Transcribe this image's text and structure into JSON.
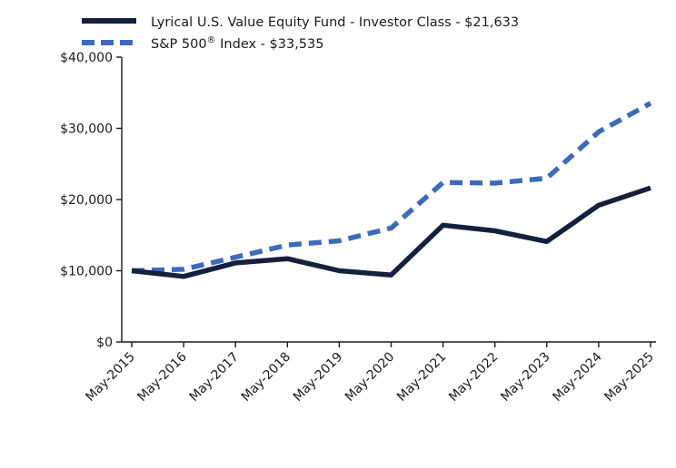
{
  "chart_data": {
    "type": "line",
    "title": "",
    "xlabel": "",
    "ylabel": "",
    "categories": [
      "May-2015",
      "May-2016",
      "May-2017",
      "May-2018",
      "May-2019",
      "May-2020",
      "May-2021",
      "May-2022",
      "May-2023",
      "May-2024",
      "May-2025"
    ],
    "ylim": [
      0,
      40000
    ],
    "yticks": [
      "$0",
      "$10,000",
      "$20,000",
      "$30,000",
      "$40,000"
    ],
    "grid": false,
    "legend_position": "top-left",
    "series": [
      {
        "name": "Lyrical U.S. Value Equity Fund - Investor Class - $21,633",
        "color": "#13213d",
        "style": "solid",
        "values": [
          10000,
          9200,
          11100,
          11700,
          10000,
          9400,
          16400,
          15600,
          14100,
          19200,
          21633
        ]
      },
      {
        "name": "S&P 500® Index - $33,535",
        "name_parts": {
          "before": "S&P 500",
          "sup": "®",
          "after": " Index - $33,535"
        },
        "color": "#3b6bbf",
        "style": "dashed",
        "values": [
          10000,
          10200,
          11900,
          13600,
          14200,
          16000,
          22400,
          22300,
          23000,
          29500,
          33535
        ]
      }
    ]
  }
}
